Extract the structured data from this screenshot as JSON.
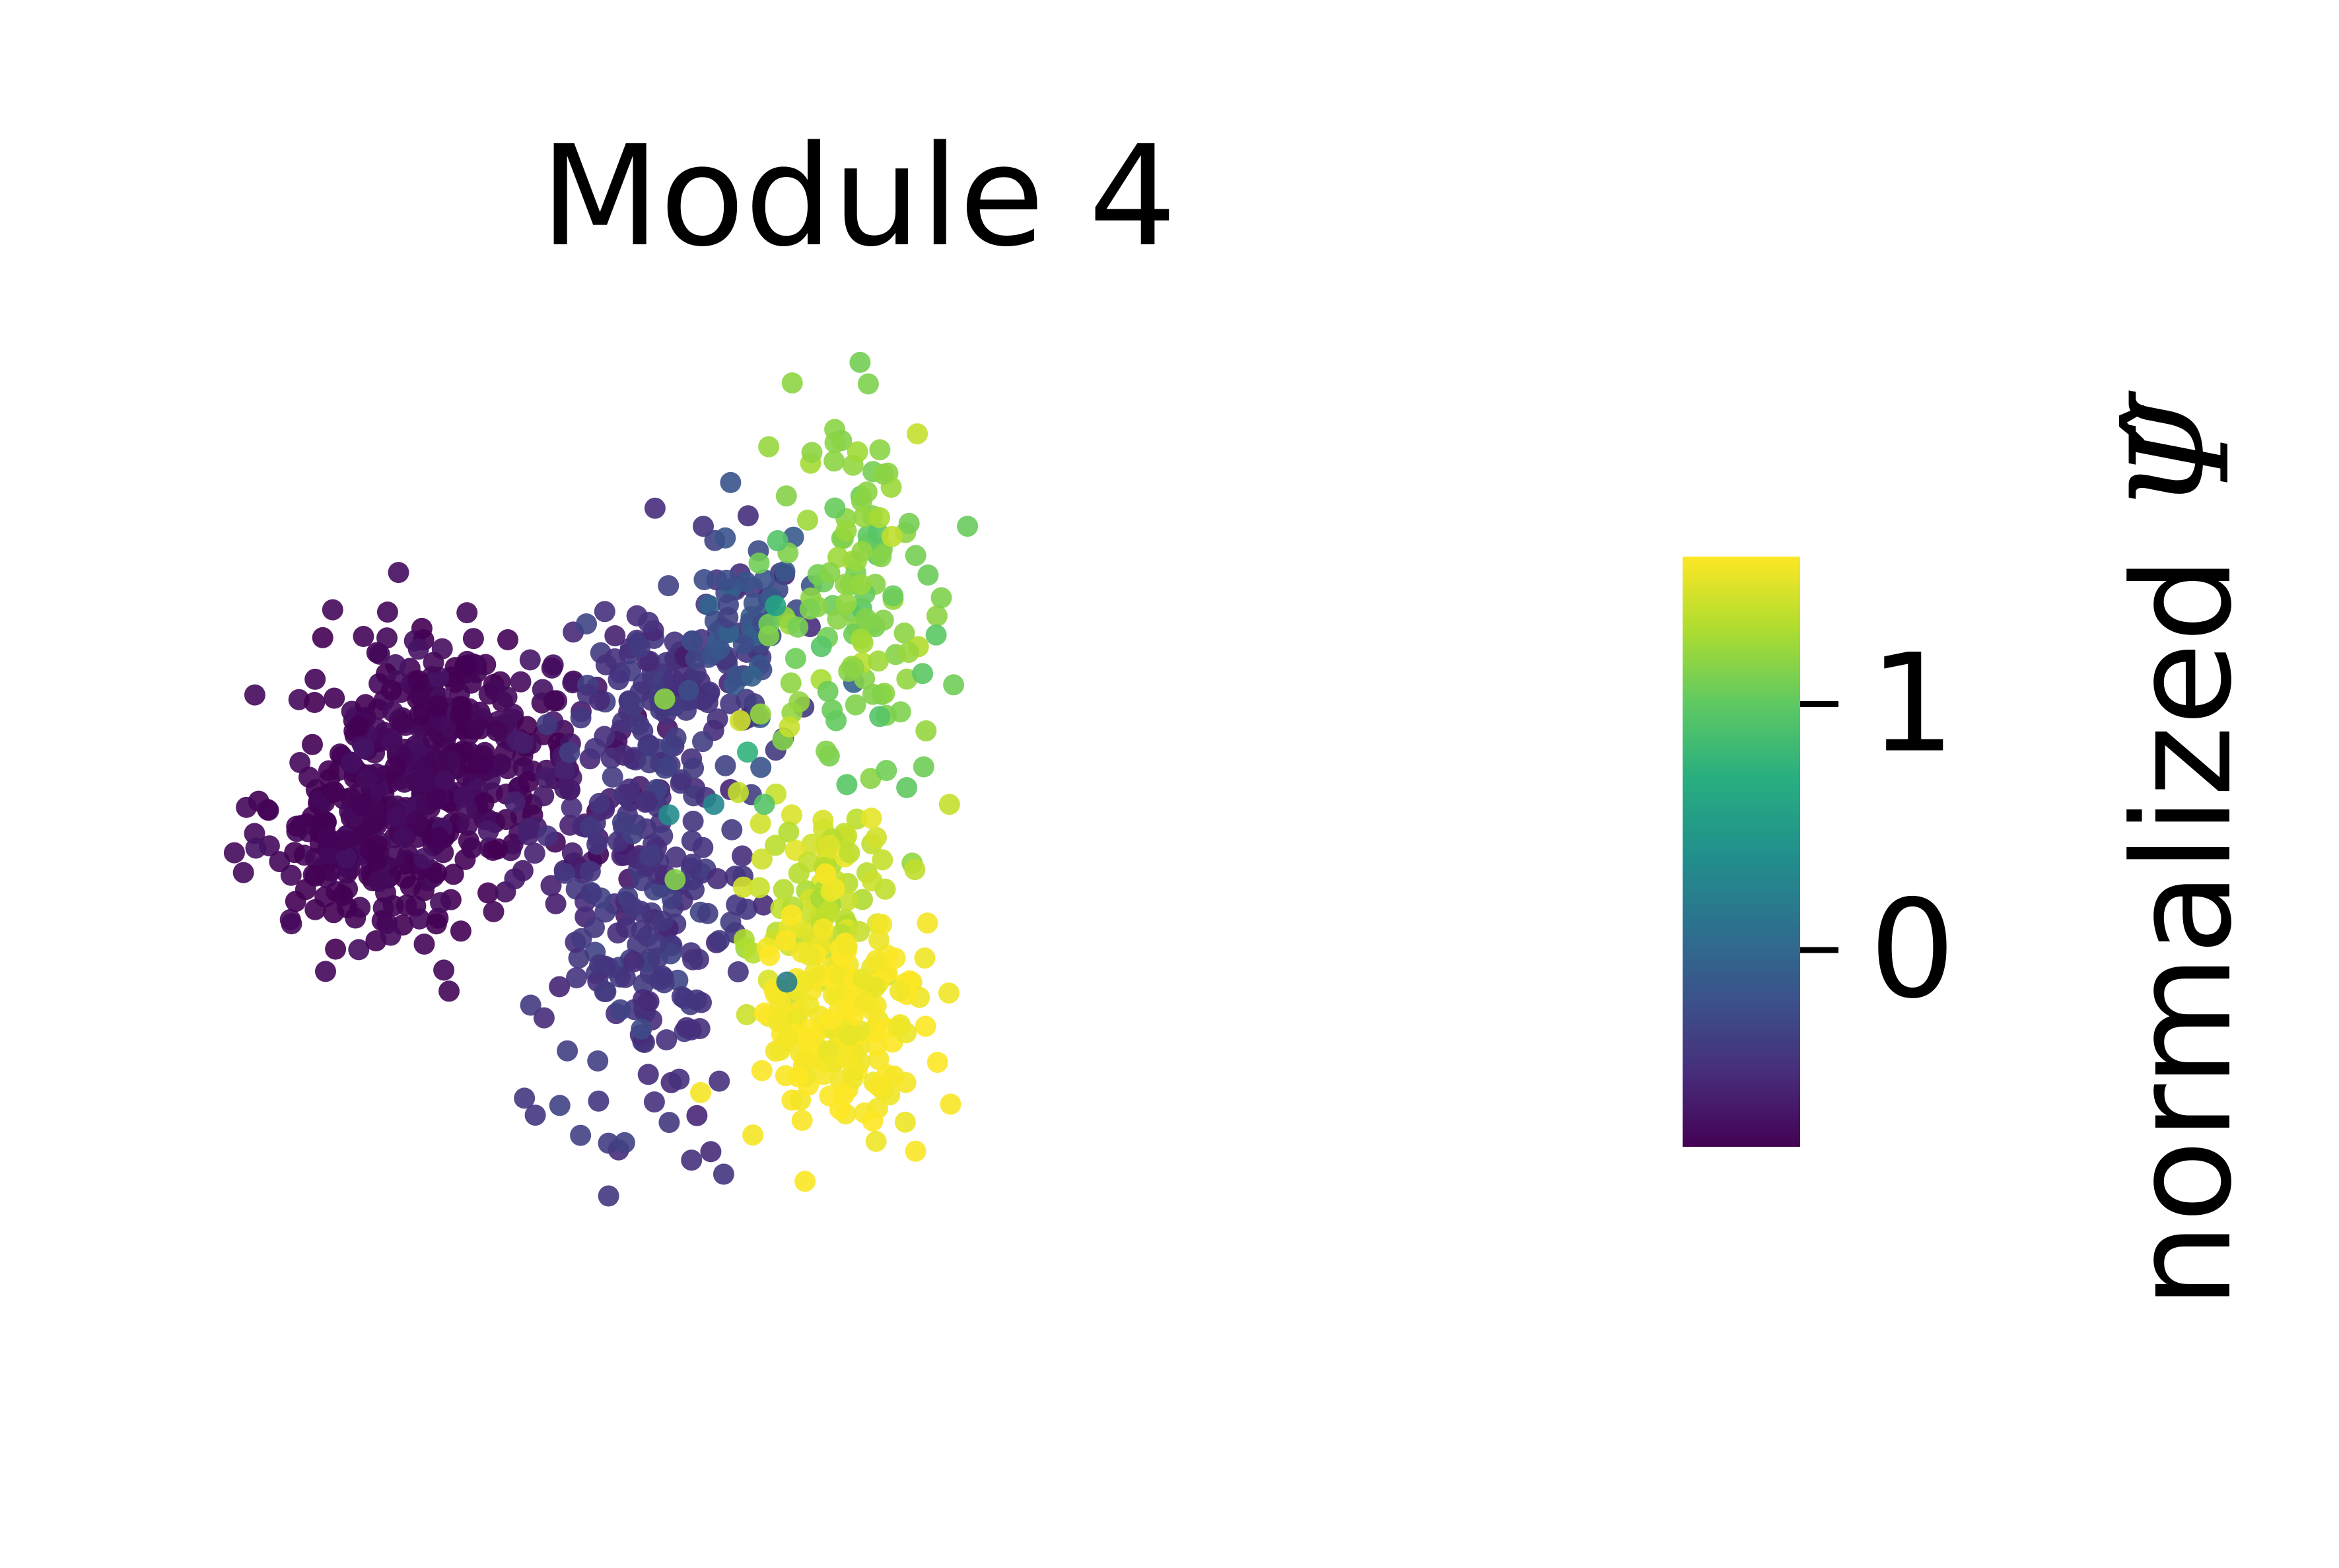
{
  "chart_data": {
    "type": "scatter",
    "title": "Module 4",
    "xlabel": "",
    "ylabel": "",
    "axes_visible": false,
    "colormap": "viridis",
    "colorbar": {
      "label_text": "normalized ",
      "label_symbol": "Ψ̂",
      "range": [
        -0.8,
        1.6
      ],
      "ticks": [
        0,
        1
      ],
      "tick_labels": [
        "0",
        "1"
      ],
      "placement": "right"
    },
    "xlim": [
      0,
      10
    ],
    "ylim": [
      0,
      6
    ],
    "clusters": [
      {
        "cx": 1.3,
        "cy": 3.0,
        "sx": 0.45,
        "sy": 0.32,
        "n": 260,
        "c_mean": -0.78,
        "c_sd": 0.04
      },
      {
        "cx": 2.1,
        "cy": 3.4,
        "sx": 0.5,
        "sy": 0.28,
        "n": 240,
        "c_mean": -0.76,
        "c_sd": 0.04
      },
      {
        "cx": 3.1,
        "cy": 3.15,
        "sx": 0.35,
        "sy": 0.3,
        "n": 60,
        "c_mean": -0.62,
        "c_sd": 0.05
      },
      {
        "cx": 4.0,
        "cy": 3.7,
        "sx": 0.45,
        "sy": 0.28,
        "n": 130,
        "c_mean": -0.45,
        "c_sd": 0.06
      },
      {
        "cx": 3.7,
        "cy": 2.55,
        "sx": 0.4,
        "sy": 0.55,
        "n": 190,
        "c_mean": -0.42,
        "c_sd": 0.06
      },
      {
        "cx": 4.55,
        "cy": 3.95,
        "sx": 0.3,
        "sy": 0.22,
        "n": 50,
        "c_mean": -0.2,
        "c_sd": 0.08
      },
      {
        "cx": 5.6,
        "cy": 4.0,
        "sx": 0.42,
        "sy": 0.45,
        "n": 130,
        "c_mean": 1.15,
        "c_sd": 0.08
      },
      {
        "cx": 5.2,
        "cy": 2.65,
        "sx": 0.38,
        "sy": 0.32,
        "n": 90,
        "c_mean": 1.4,
        "c_sd": 0.06
      },
      {
        "cx": 5.4,
        "cy": 2.05,
        "sx": 0.38,
        "sy": 0.33,
        "n": 170,
        "c_mean": 1.57,
        "c_sd": 0.03
      }
    ],
    "outliers": [
      {
        "x": 3.9,
        "y": 3.05,
        "c": 0.35
      },
      {
        "x": 4.6,
        "y": 3.35,
        "c": 0.75
      },
      {
        "x": 4.3,
        "y": 3.1,
        "c": 0.3
      },
      {
        "x": 4.85,
        "y": 4.05,
        "c": 0.6
      },
      {
        "x": 4.95,
        "y": 2.25,
        "c": 0.2
      },
      {
        "x": 4.75,
        "y": 3.1,
        "c": 0.95
      }
    ]
  }
}
